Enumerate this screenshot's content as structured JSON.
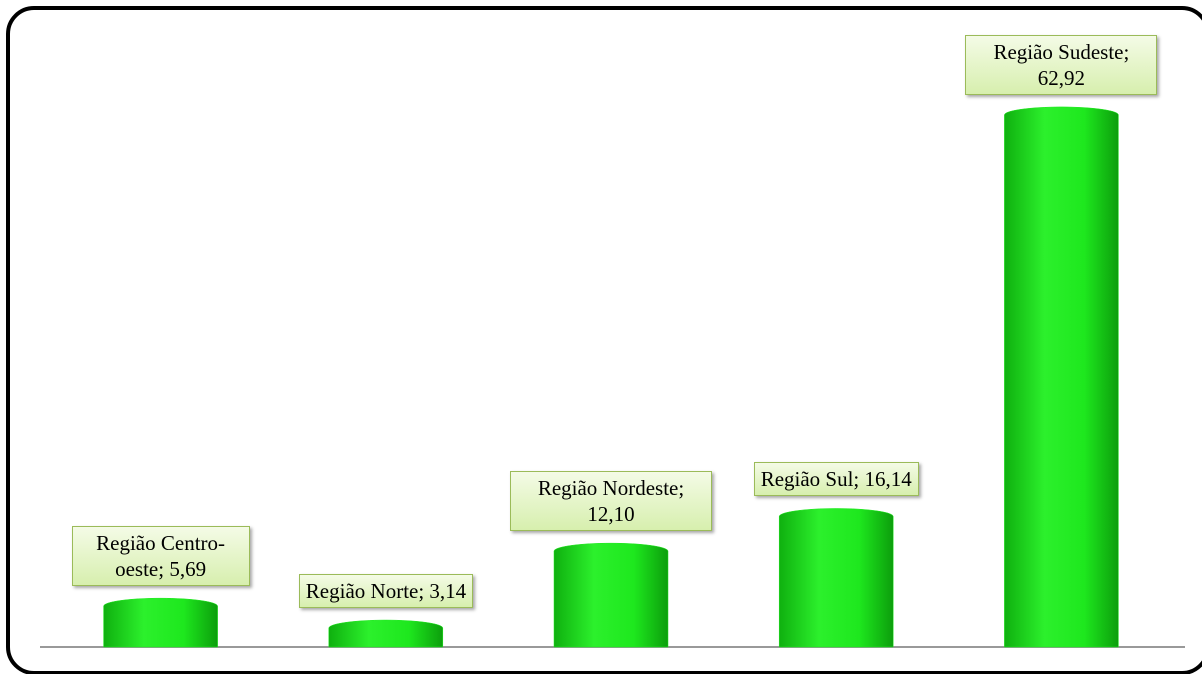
{
  "chart_data": {
    "type": "bar",
    "values": [
      5.69,
      3.14,
      12.1,
      16.14,
      62.92
    ],
    "value_labels": [
      "Região Centro-oeste; 5,69",
      "Região Norte; 3,14",
      "Região Nordeste; 12,10",
      "Região Sul; 16,14",
      "Região Sudeste; 62,92"
    ],
    "color": "#1ee81e",
    "ylim": [
      0,
      72
    ]
  }
}
